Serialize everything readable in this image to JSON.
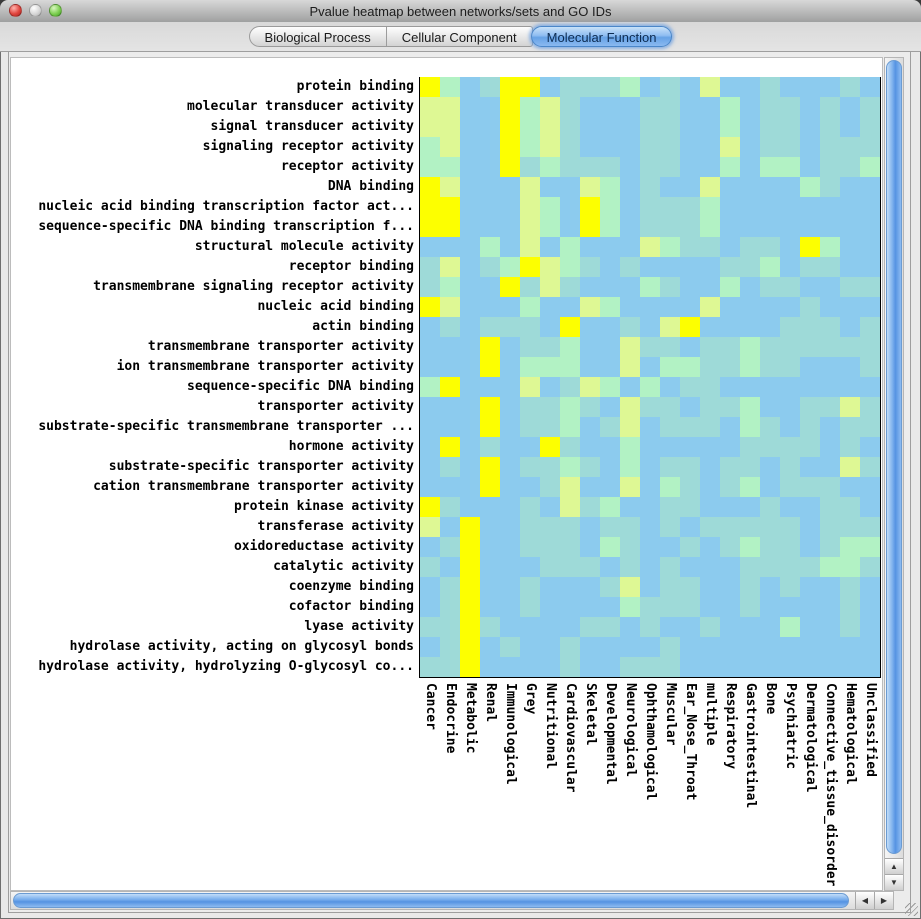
{
  "window": {
    "title": "Pvalue heatmap between networks/sets and GO IDs"
  },
  "tabs": [
    {
      "label": "Biological Process",
      "selected": false
    },
    {
      "label": "Cellular Component",
      "selected": false
    },
    {
      "label": "Molecular Function",
      "selected": true
    }
  ],
  "icons": {
    "scroll_up": "▲",
    "scroll_down": "▼",
    "scroll_left": "◀",
    "scroll_right": "▶"
  },
  "colors": {
    "close_button": "#e0453e",
    "minimize_button_inactive": "#d8d8d8",
    "zoom_button": "#7ed052",
    "selected_tab": "#77abe9",
    "scrollbar_thumb": "#7cb0ed"
  },
  "chart_data": {
    "type": "heatmap",
    "title": "Pvalue heatmap between networks/sets and GO IDs",
    "legend_note": "cell color encodes p-value significance: 0=low (light blue) to 4=high (yellow)",
    "palette": [
      "#8ccbee",
      "#9edad8",
      "#b2f2c4",
      "#def894",
      "#fdff00"
    ],
    "rows": [
      "protein binding",
      "molecular transducer activity",
      "signal transducer activity",
      "signaling receptor activity",
      "receptor activity",
      "DNA binding",
      "nucleic acid binding transcription factor act...",
      "sequence-specific DNA binding transcription f...",
      "structural molecule activity",
      "receptor binding",
      "transmembrane signaling receptor activity",
      "nucleic acid binding",
      "actin binding",
      "transmembrane transporter activity",
      "ion transmembrane transporter activity",
      "sequence-specific DNA binding",
      "transporter activity",
      "substrate-specific transmembrane transporter ...",
      "hormone activity",
      "substrate-specific transporter activity",
      "cation transmembrane transporter activity",
      "protein kinase activity",
      "transferase activity",
      "oxidoreductase activity",
      "catalytic activity",
      "coenzyme binding",
      "cofactor binding",
      "lyase activity",
      "hydrolase activity, acting on glycosyl bonds",
      "hydrolase activity, hydrolyzing O-glycosyl co..."
    ],
    "columns": [
      "Cancer",
      "Endocrine",
      "Metabolic",
      "Renal",
      "Immunological",
      "Grey",
      "Nutritional",
      "Cardiovascular",
      "Skeletal",
      "Developmental",
      "Neurological",
      "Ophthamological",
      "Muscular",
      "Ear_Nose_Throat",
      "multiple",
      "Respiratory",
      "Gastrointestinal",
      "Bone",
      "Psychiatric",
      "Dermatological",
      "Connective_tissue_disorder",
      "Hematological",
      "Unclassified"
    ],
    "values": [
      [
        4,
        2,
        0,
        1,
        4,
        4,
        0,
        1,
        1,
        1,
        2,
        0,
        1,
        0,
        3,
        0,
        0,
        1,
        0,
        0,
        0,
        1,
        0
      ],
      [
        3,
        3,
        0,
        0,
        4,
        2,
        3,
        1,
        0,
        0,
        0,
        1,
        1,
        0,
        0,
        2,
        0,
        1,
        1,
        0,
        1,
        0,
        1
      ],
      [
        3,
        3,
        0,
        0,
        4,
        2,
        3,
        1,
        0,
        0,
        0,
        1,
        1,
        0,
        0,
        2,
        0,
        1,
        1,
        0,
        1,
        0,
        1
      ],
      [
        2,
        3,
        0,
        0,
        4,
        2,
        3,
        1,
        0,
        0,
        0,
        1,
        1,
        0,
        0,
        3,
        0,
        1,
        1,
        0,
        1,
        1,
        1
      ],
      [
        2,
        2,
        0,
        0,
        4,
        1,
        2,
        1,
        1,
        1,
        0,
        1,
        1,
        0,
        0,
        2,
        0,
        2,
        2,
        0,
        1,
        1,
        2
      ],
      [
        4,
        3,
        0,
        0,
        0,
        3,
        0,
        0,
        3,
        2,
        0,
        1,
        0,
        0,
        3,
        0,
        0,
        0,
        0,
        2,
        1,
        0,
        0
      ],
      [
        4,
        4,
        0,
        0,
        0,
        3,
        2,
        0,
        4,
        2,
        0,
        1,
        1,
        1,
        2,
        0,
        0,
        0,
        0,
        0,
        0,
        0,
        0
      ],
      [
        4,
        4,
        0,
        0,
        0,
        3,
        2,
        0,
        4,
        2,
        0,
        1,
        1,
        1,
        2,
        0,
        0,
        0,
        0,
        0,
        0,
        0,
        0
      ],
      [
        0,
        0,
        0,
        2,
        0,
        3,
        0,
        2,
        0,
        0,
        0,
        3,
        2,
        1,
        1,
        0,
        1,
        1,
        0,
        4,
        2,
        0,
        0
      ],
      [
        1,
        3,
        0,
        1,
        2,
        4,
        3,
        2,
        1,
        0,
        1,
        0,
        0,
        0,
        0,
        1,
        1,
        2,
        0,
        1,
        1,
        0,
        0
      ],
      [
        1,
        2,
        0,
        0,
        4,
        1,
        3,
        1,
        0,
        0,
        0,
        2,
        1,
        0,
        0,
        2,
        0,
        1,
        1,
        0,
        0,
        1,
        1
      ],
      [
        4,
        3,
        0,
        0,
        0,
        2,
        0,
        0,
        3,
        2,
        0,
        0,
        0,
        0,
        3,
        0,
        0,
        0,
        0,
        1,
        0,
        0,
        0
      ],
      [
        0,
        1,
        0,
        1,
        1,
        1,
        0,
        4,
        0,
        0,
        1,
        0,
        3,
        4,
        0,
        0,
        0,
        0,
        1,
        1,
        1,
        0,
        1
      ],
      [
        0,
        0,
        0,
        4,
        0,
        1,
        1,
        2,
        0,
        0,
        3,
        1,
        1,
        0,
        1,
        1,
        2,
        1,
        1,
        1,
        1,
        1,
        1
      ],
      [
        0,
        0,
        0,
        4,
        0,
        2,
        2,
        2,
        0,
        0,
        3,
        0,
        2,
        2,
        1,
        1,
        2,
        1,
        1,
        0,
        0,
        0,
        1
      ],
      [
        2,
        4,
        0,
        0,
        0,
        3,
        0,
        1,
        3,
        2,
        0,
        2,
        0,
        1,
        1,
        0,
        0,
        0,
        0,
        0,
        0,
        0,
        0
      ],
      [
        0,
        0,
        0,
        4,
        0,
        1,
        1,
        2,
        1,
        0,
        3,
        1,
        1,
        0,
        1,
        1,
        2,
        0,
        0,
        1,
        1,
        3,
        1
      ],
      [
        0,
        0,
        0,
        4,
        0,
        1,
        1,
        2,
        0,
        1,
        3,
        0,
        1,
        1,
        1,
        0,
        2,
        1,
        0,
        1,
        0,
        1,
        1
      ],
      [
        0,
        4,
        0,
        1,
        0,
        0,
        4,
        1,
        0,
        0,
        2,
        0,
        0,
        0,
        0,
        0,
        1,
        1,
        1,
        1,
        0,
        1,
        0
      ],
      [
        0,
        1,
        0,
        4,
        0,
        1,
        1,
        2,
        1,
        0,
        2,
        0,
        1,
        1,
        0,
        1,
        1,
        0,
        1,
        0,
        0,
        3,
        1
      ],
      [
        0,
        0,
        0,
        4,
        0,
        0,
        1,
        3,
        0,
        0,
        3,
        0,
        2,
        1,
        0,
        1,
        2,
        0,
        1,
        1,
        1,
        0,
        0
      ],
      [
        4,
        1,
        0,
        0,
        0,
        1,
        0,
        3,
        1,
        2,
        0,
        0,
        1,
        1,
        0,
        0,
        0,
        1,
        0,
        0,
        1,
        1,
        0
      ],
      [
        3,
        0,
        4,
        0,
        0,
        1,
        1,
        1,
        0,
        1,
        1,
        0,
        1,
        0,
        1,
        1,
        1,
        1,
        1,
        0,
        1,
        1,
        1
      ],
      [
        0,
        1,
        4,
        0,
        0,
        1,
        1,
        1,
        0,
        2,
        1,
        0,
        0,
        1,
        0,
        1,
        2,
        1,
        1,
        0,
        1,
        2,
        2
      ],
      [
        1,
        0,
        4,
        0,
        0,
        0,
        1,
        1,
        1,
        0,
        1,
        0,
        1,
        0,
        0,
        0,
        1,
        1,
        1,
        1,
        2,
        2,
        1
      ],
      [
        0,
        1,
        4,
        0,
        0,
        1,
        0,
        0,
        0,
        1,
        3,
        0,
        1,
        1,
        0,
        0,
        1,
        0,
        1,
        0,
        0,
        1,
        0
      ],
      [
        0,
        1,
        4,
        0,
        0,
        1,
        0,
        0,
        0,
        0,
        2,
        1,
        1,
        1,
        0,
        0,
        1,
        0,
        0,
        0,
        0,
        1,
        0
      ],
      [
        1,
        1,
        4,
        1,
        0,
        0,
        0,
        0,
        1,
        1,
        0,
        1,
        0,
        0,
        1,
        0,
        0,
        0,
        2,
        0,
        0,
        1,
        0
      ],
      [
        0,
        1,
        4,
        0,
        1,
        0,
        0,
        1,
        0,
        0,
        0,
        0,
        1,
        0,
        0,
        0,
        0,
        0,
        0,
        0,
        0,
        0,
        0
      ],
      [
        1,
        1,
        4,
        0,
        0,
        0,
        0,
        1,
        0,
        0,
        1,
        1,
        1,
        0,
        0,
        0,
        0,
        0,
        0,
        0,
        0,
        0,
        0
      ]
    ]
  }
}
